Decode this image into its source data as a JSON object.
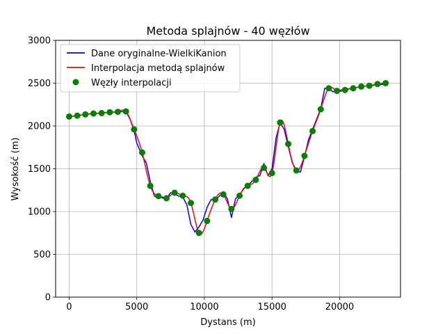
{
  "chart_data": {
    "type": "line",
    "title": "Metoda splajnów - 40 węzłów",
    "xlabel": "Dystans (m)",
    "ylabel": "Wysokość (m)",
    "xlim": [
      -1000,
      24500
    ],
    "ylim": [
      0,
      3000
    ],
    "xticks": [
      0,
      5000,
      10000,
      15000,
      20000
    ],
    "xtick_labels": [
      "0",
      "5000",
      "10000",
      "15000",
      "20000"
    ],
    "yticks": [
      0,
      500,
      1000,
      1500,
      2000,
      2500,
      3000
    ],
    "ytick_labels": [
      "0",
      "500",
      "1000",
      "1500",
      "2000",
      "2500",
      "3000"
    ],
    "grid": true,
    "legend_position": "upper-left",
    "series": [
      {
        "name": "Dane oryginalne-WielkiKanion",
        "kind": "line",
        "color": "#0000ff",
        "x": [
          0,
          600,
          1200,
          1800,
          2400,
          3000,
          3600,
          4200,
          4500,
          4800,
          5000,
          5400,
          5700,
          6000,
          6300,
          6600,
          6900,
          7200,
          7500,
          7800,
          8100,
          8400,
          8700,
          9000,
          9300,
          9600,
          9900,
          10200,
          10500,
          10800,
          11100,
          11400,
          11700,
          12000,
          12300,
          12600,
          12900,
          13200,
          13500,
          13800,
          14100,
          14400,
          14700,
          15000,
          15300,
          15600,
          15900,
          16200,
          16500,
          16800,
          17100,
          17400,
          17700,
          18000,
          18300,
          18600,
          18900,
          19200,
          19500,
          19800,
          20100,
          20400,
          21000,
          21600,
          22200,
          22800,
          23400
        ],
        "y": [
          2110,
          2120,
          2135,
          2145,
          2150,
          2160,
          2165,
          2170,
          2080,
          1950,
          1800,
          1650,
          1570,
          1350,
          1180,
          1160,
          1170,
          1150,
          1220,
          1210,
          1180,
          1170,
          1080,
          850,
          760,
          820,
          900,
          1050,
          1140,
          1130,
          1180,
          1220,
          1150,
          930,
          1150,
          1190,
          1270,
          1300,
          1350,
          1400,
          1420,
          1560,
          1420,
          1500,
          1860,
          2040,
          1960,
          1760,
          1570,
          1480,
          1460,
          1640,
          1840,
          1960,
          2080,
          2200,
          2440,
          2440,
          2400,
          2400,
          2420,
          2430,
          2440,
          2460,
          2470,
          2480,
          2490
        ]
      },
      {
        "name": "Interpolacja metodą splajnów",
        "kind": "line",
        "color": "#ff0000"
      },
      {
        "name": "Węzły interpolacji",
        "kind": "scatter",
        "color": "#008000",
        "x": [
          0,
          600,
          1200,
          1800,
          2400,
          3000,
          3600,
          4200,
          4800,
          5400,
          6000,
          6600,
          7200,
          7800,
          8400,
          9000,
          9600,
          10200,
          10800,
          11400,
          12000,
          12600,
          13200,
          13800,
          14400,
          15000,
          15600,
          16200,
          16800,
          17400,
          18000,
          18600,
          19200,
          19800,
          20400,
          21000,
          21600,
          22200,
          22800,
          23400
        ],
        "y": [
          2110,
          2120,
          2135,
          2145,
          2150,
          2160,
          2165,
          2170,
          1960,
          1690,
          1300,
          1180,
          1155,
          1220,
          1185,
          1100,
          750,
          890,
          1140,
          1200,
          1030,
          1185,
          1300,
          1370,
          1510,
          1450,
          2040,
          1790,
          1480,
          1650,
          1940,
          2195,
          2440,
          2410,
          2420,
          2440,
          2460,
          2470,
          2490,
          2500
        ]
      }
    ]
  }
}
